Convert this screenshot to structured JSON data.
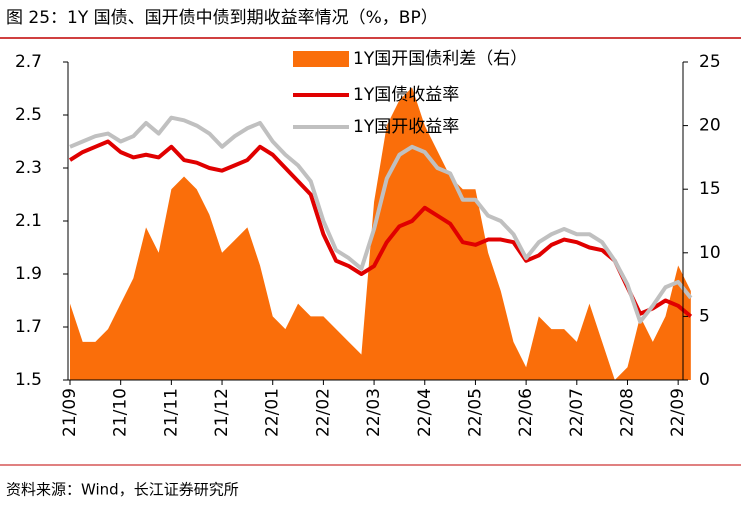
{
  "chart_data": {
    "type": "line",
    "title": "图 25：1Y 国债、国开债中债到期收益率情况（%，BP）",
    "source": "资料来源：Wind，长江证券研究所",
    "categories": [
      "21/09",
      null,
      null,
      null,
      "21/10",
      null,
      null,
      null,
      "21/11",
      null,
      null,
      null,
      "21/12",
      null,
      null,
      null,
      "22/01",
      null,
      null,
      null,
      "22/02",
      null,
      null,
      null,
      "22/03",
      null,
      null,
      null,
      "22/04",
      null,
      null,
      null,
      "22/05",
      null,
      null,
      null,
      "22/06",
      null,
      null,
      null,
      "22/07",
      null,
      null,
      null,
      "22/08",
      null,
      null,
      null,
      "22/09",
      null
    ],
    "series": [
      {
        "name": "1Y国开国债利差（右）",
        "color": "#fa6e0a",
        "kind": "area",
        "axis": "y2",
        "values": [
          6,
          3,
          3,
          4,
          6,
          8,
          12,
          10,
          15,
          16,
          15,
          13,
          10,
          11,
          12,
          9,
          5,
          4,
          6,
          5,
          5,
          4,
          3,
          2,
          14,
          20,
          22,
          23,
          20,
          18,
          16,
          15,
          15,
          10,
          7,
          3,
          1,
          5,
          4,
          4,
          3,
          6,
          3,
          0,
          1,
          5,
          3,
          5,
          9,
          7
        ]
      },
      {
        "name": "1Y国债收益率",
        "color": "#e00000",
        "kind": "line",
        "values": [
          2.33,
          2.36,
          2.38,
          2.4,
          2.36,
          2.34,
          2.35,
          2.34,
          2.38,
          2.33,
          2.32,
          2.3,
          2.29,
          2.31,
          2.33,
          2.38,
          2.35,
          2.3,
          2.25,
          2.2,
          2.05,
          1.95,
          1.93,
          1.9,
          1.93,
          2.02,
          2.08,
          2.1,
          2.15,
          2.12,
          2.09,
          2.02,
          2.01,
          2.03,
          2.03,
          2.02,
          1.95,
          1.97,
          2.01,
          2.03,
          2.02,
          2.0,
          1.99,
          1.95,
          1.85,
          1.75,
          1.77,
          1.8,
          1.78,
          1.74
        ]
      },
      {
        "name": "1Y国开收益率",
        "color": "#c0c0c0",
        "kind": "line",
        "values": [
          2.38,
          2.4,
          2.42,
          2.43,
          2.4,
          2.42,
          2.47,
          2.43,
          2.49,
          2.48,
          2.46,
          2.43,
          2.38,
          2.42,
          2.45,
          2.47,
          2.4,
          2.35,
          2.31,
          2.25,
          2.1,
          1.99,
          1.96,
          1.92,
          2.07,
          2.26,
          2.35,
          2.38,
          2.36,
          2.3,
          2.28,
          2.18,
          2.18,
          2.12,
          2.1,
          2.05,
          1.96,
          2.02,
          2.05,
          2.07,
          2.05,
          2.05,
          2.02,
          1.95,
          1.86,
          1.72,
          1.78,
          1.85,
          1.87,
          1.81
        ]
      }
    ],
    "ylim": [
      1.5,
      2.7
    ],
    "yticks": [
      1.5,
      1.7,
      1.9,
      2.1,
      2.3,
      2.5,
      2.7
    ],
    "y2lim": [
      0,
      25
    ],
    "y2ticks": [
      0,
      5,
      10,
      15,
      20,
      25
    ],
    "grid": false,
    "legend": "top"
  }
}
